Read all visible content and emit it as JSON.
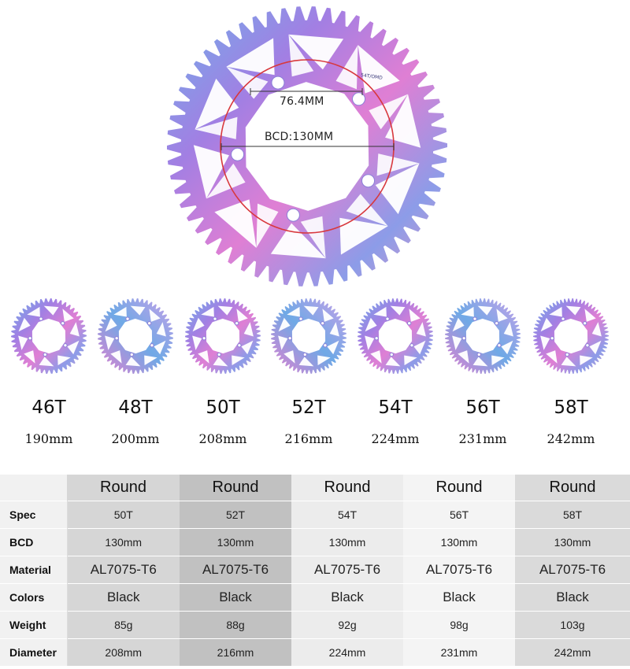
{
  "hero": {
    "measure_short": "76.4MM",
    "measure_bcd": "BCD:130MM",
    "engraving": "54T/OMD"
  },
  "sizes": [
    {
      "teeth": "46T",
      "diameter": "190mm"
    },
    {
      "teeth": "48T",
      "diameter": "200mm"
    },
    {
      "teeth": "50T",
      "diameter": "208mm"
    },
    {
      "teeth": "52T",
      "diameter": "216mm"
    },
    {
      "teeth": "54T",
      "diameter": "224mm"
    },
    {
      "teeth": "56T",
      "diameter": "231mm"
    },
    {
      "teeth": "58T",
      "diameter": "242mm"
    }
  ],
  "table": {
    "headers": [
      "Round",
      "Round",
      "Round",
      "Round",
      "Round"
    ],
    "rows": [
      {
        "label": "Spec",
        "values": [
          "50T",
          "52T",
          "54T",
          "56T",
          "58T"
        ]
      },
      {
        "label": "BCD",
        "values": [
          "130mm",
          "130mm",
          "130mm",
          "130mm",
          "130mm"
        ]
      },
      {
        "label": "Material",
        "values": [
          "AL7075-T6",
          "AL7075-T6",
          "AL7075-T6",
          "AL7075-T6",
          "AL7075-T6"
        ]
      },
      {
        "label": "Colors",
        "values": [
          "Black",
          "Black",
          "Black",
          "Black",
          "Black"
        ]
      },
      {
        "label": "Weight",
        "values": [
          "85g",
          "88g",
          "92g",
          "98g",
          "103g"
        ]
      },
      {
        "label": "Diameter",
        "values": [
          "208mm",
          "216mm",
          "224mm",
          "231mm",
          "242mm"
        ]
      }
    ]
  },
  "colors": {
    "rainbow": [
      "#5fb3e6",
      "#9b7be0",
      "#d77ad6",
      "#e58dc2",
      "#7fa8e8"
    ],
    "bcd_circle": "#d8383d"
  }
}
